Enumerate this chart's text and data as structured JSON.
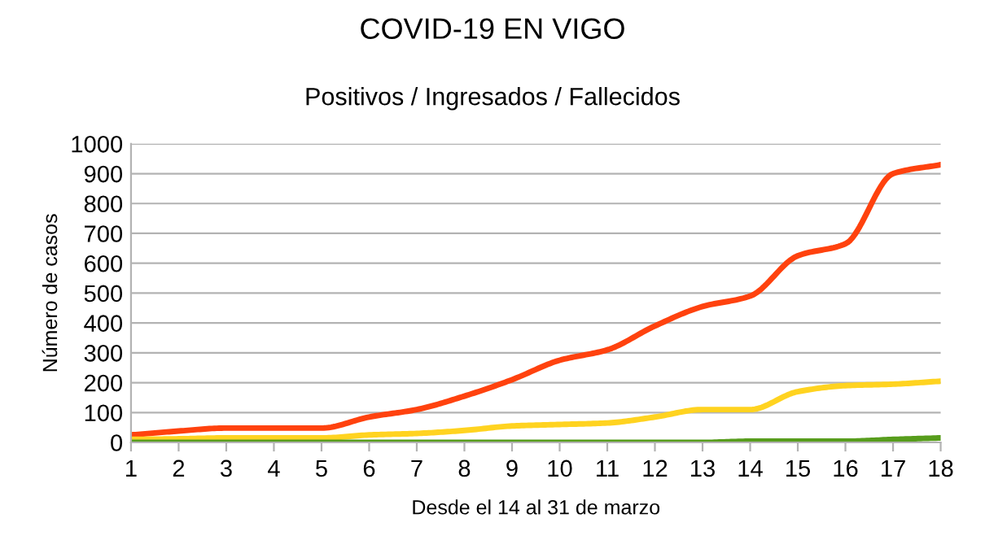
{
  "chart_data": {
    "type": "line",
    "title": "COVID-19 EN VIGO",
    "subtitle": "Positivos / Ingresados / Fallecidos",
    "xlabel": "Desde el 14 al 31 de marzo",
    "ylabel": "Número de casos",
    "x": [
      1,
      2,
      3,
      4,
      5,
      6,
      7,
      8,
      9,
      10,
      11,
      12,
      13,
      14,
      15,
      16,
      17,
      18
    ],
    "series": [
      {
        "color": "#ff420e",
        "values": [
          25,
          38,
          48,
          48,
          48,
          85,
          110,
          155,
          210,
          275,
          310,
          390,
          455,
          490,
          625,
          665,
          900,
          930
        ]
      },
      {
        "color": "#ffd320",
        "values": [
          10,
          12,
          15,
          15,
          15,
          25,
          30,
          40,
          55,
          60,
          65,
          85,
          110,
          110,
          170,
          190,
          195,
          205
        ]
      },
      {
        "color": "#579d1c",
        "values": [
          0,
          0,
          0,
          0,
          0,
          0,
          0,
          0,
          0,
          0,
          0,
          0,
          0,
          4,
          4,
          4,
          10,
          15
        ]
      }
    ],
    "xlim": [
      1,
      18
    ],
    "xticks": [
      1,
      2,
      3,
      4,
      5,
      6,
      7,
      8,
      9,
      10,
      11,
      12,
      13,
      14,
      15,
      16,
      17,
      18
    ],
    "ylim": [
      0,
      1000
    ],
    "yticks": [
      0,
      100,
      200,
      300,
      400,
      500,
      600,
      700,
      800,
      900,
      1000
    ],
    "grid": "y",
    "marker": "none",
    "line_style": "solid"
  }
}
